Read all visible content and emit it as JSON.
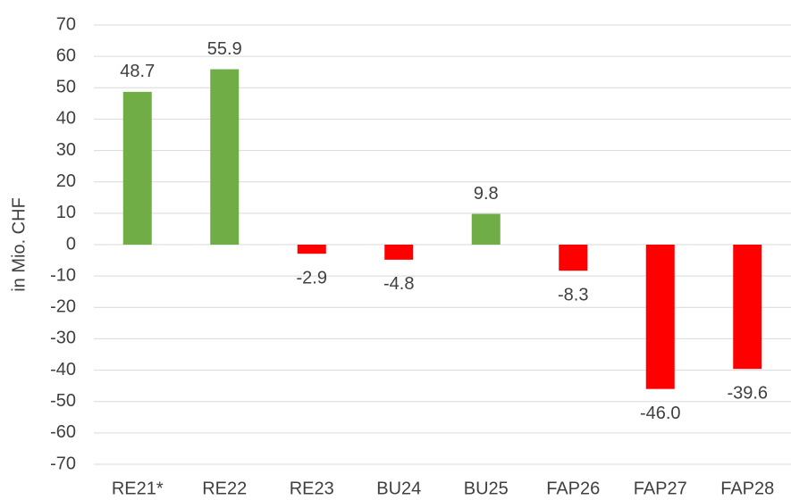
{
  "chart_data": {
    "type": "bar",
    "y_axis_label": "in Mio. CHF",
    "categories": [
      "RE21*",
      "RE22",
      "RE23",
      "BU24",
      "BU25",
      "FAP26",
      "FAP27",
      "FAP28"
    ],
    "values": [
      48.7,
      55.9,
      -2.9,
      -4.8,
      9.8,
      -8.3,
      -46,
      -39.6
    ],
    "value_labels": [
      "48.7",
      "55.9",
      "-2.9",
      "-4.8",
      "9.8",
      "-8.3",
      "-46.0",
      "-39.6"
    ],
    "colors": [
      "#70ad47",
      "#70ad47",
      "#ff0000",
      "#ff0000",
      "#70ad47",
      "#ff0000",
      "#ff0000",
      "#ff0000"
    ],
    "ylim": [
      -70,
      70
    ],
    "yticks": [
      -70,
      -60,
      -50,
      -40,
      -30,
      -20,
      -10,
      0,
      10,
      20,
      30,
      40,
      50,
      60,
      70
    ],
    "grid": true
  }
}
